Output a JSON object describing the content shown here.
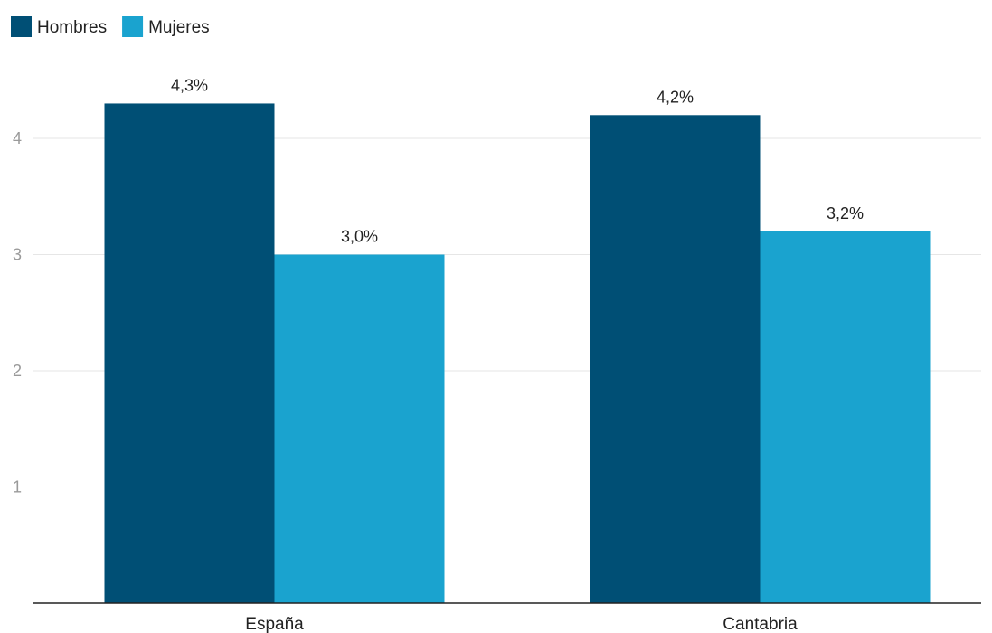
{
  "chart_data": {
    "type": "bar",
    "categories": [
      "España",
      "Cantabria"
    ],
    "series": [
      {
        "name": "Hombres",
        "color": "#004f75",
        "values": [
          4.3,
          4.2
        ],
        "labels": [
          "4,3%",
          "4,2%"
        ]
      },
      {
        "name": "Mujeres",
        "color": "#1aa3cf",
        "values": [
          3.0,
          3.2
        ],
        "labels": [
          "3,0%",
          "3,2%"
        ]
      }
    ],
    "yticks": [
      {
        "value": 1,
        "label": "1"
      },
      {
        "value": 2,
        "label": "2"
      },
      {
        "value": 3,
        "label": "3"
      },
      {
        "value": 4,
        "label": "4"
      }
    ],
    "ylim": [
      0,
      4.3
    ],
    "grid": true,
    "legend_position": "top-left",
    "title": "",
    "xlabel": "",
    "ylabel": ""
  }
}
